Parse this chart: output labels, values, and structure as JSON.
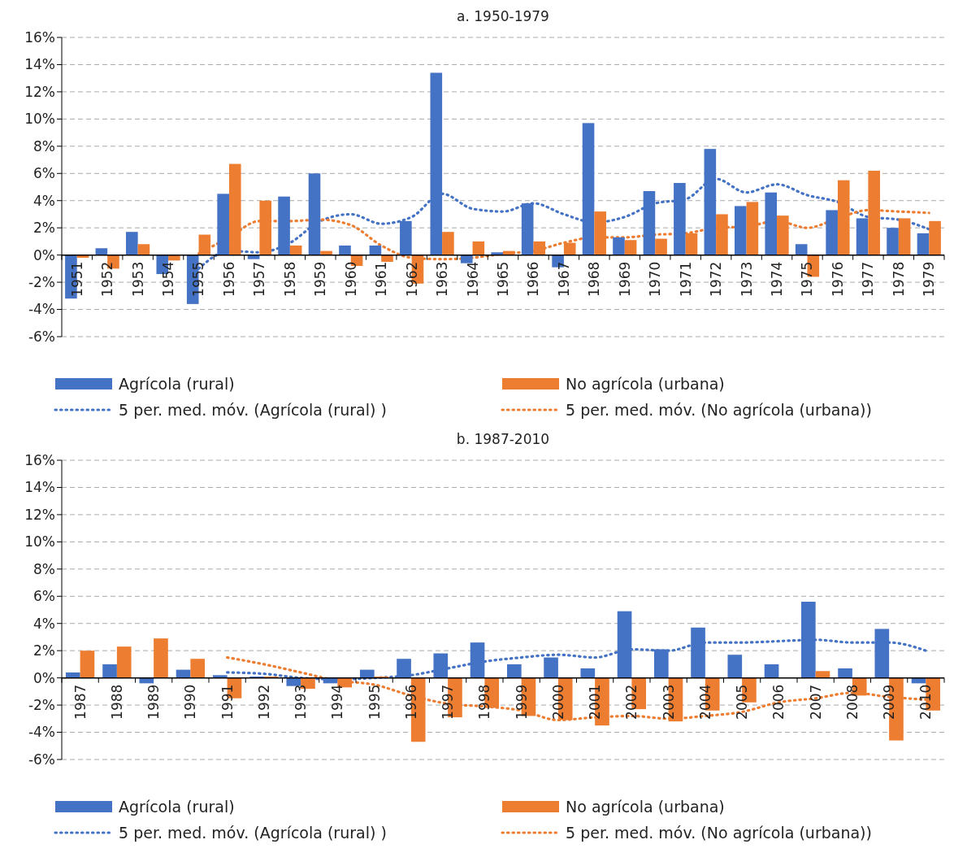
{
  "chart_data": [
    {
      "type": "bar",
      "title": "a. 1950-1979",
      "categories": [
        "1951",
        "1952",
        "1953",
        "1954",
        "1955",
        "1956",
        "1957",
        "1958",
        "1959",
        "1960",
        "1961",
        "1962",
        "1963",
        "1964",
        "1965",
        "1966",
        "1967",
        "1968",
        "1969",
        "1970",
        "1971",
        "1972",
        "1973",
        "1974",
        "1975",
        "1976",
        "1977",
        "1978",
        "1979"
      ],
      "series": [
        {
          "name": "Agrícola (rural)",
          "color": "#4472c4",
          "values": [
            -3.2,
            0.5,
            1.7,
            -1.4,
            -3.6,
            4.5,
            -0.3,
            4.3,
            6.0,
            0.7,
            0.7,
            2.5,
            13.4,
            -0.6,
            0.2,
            3.8,
            -0.9,
            9.7,
            1.3,
            4.7,
            5.3,
            7.8,
            3.6,
            4.6,
            0.8,
            3.3,
            2.7,
            2.0,
            1.6
          ]
        },
        {
          "name": "No agrícola (urbana)",
          "color": "#ed7d31",
          "values": [
            -0.2,
            -1.0,
            0.8,
            -0.4,
            1.5,
            6.7,
            4.0,
            0.7,
            0.3,
            -0.8,
            -0.5,
            -2.1,
            1.7,
            1.0,
            0.3,
            1.0,
            0.9,
            3.2,
            1.1,
            1.2,
            1.6,
            3.0,
            3.9,
            2.9,
            -1.6,
            5.5,
            6.2,
            2.7,
            2.5
          ]
        },
        {
          "name": "5 per. med. móv. (Agrícola (rural) )",
          "type": "line",
          "line_style": "dotted",
          "color": "#4472c4",
          "values": [
            null,
            null,
            null,
            null,
            -1.0,
            0.3,
            0.2,
            0.9,
            2.5,
            3.0,
            2.3,
            2.8,
            4.5,
            3.4,
            3.2,
            3.8,
            3.0,
            2.4,
            2.8,
            3.8,
            4.1,
            5.6,
            4.6,
            5.2,
            4.4,
            3.9,
            2.8,
            2.6,
            1.9
          ]
        },
        {
          "name": "5 per. med. móv. (No agrícola (urbana))",
          "type": "line",
          "line_style": "dotted",
          "color": "#ed7d31",
          "values": [
            null,
            null,
            null,
            null,
            0.1,
            1.3,
            2.5,
            2.5,
            2.6,
            2.2,
            0.7,
            -0.2,
            -0.3,
            -0.2,
            0.1,
            0.3,
            0.9,
            1.3,
            1.3,
            1.5,
            1.6,
            2.0,
            2.1,
            2.5,
            2.0,
            2.7,
            3.3,
            3.2,
            3.1
          ]
        }
      ],
      "ylim": [
        -6,
        16
      ],
      "yticks": [
        {
          "value": -6,
          "label": "-6%"
        },
        {
          "value": -4,
          "label": "-4%"
        },
        {
          "value": -2,
          "label": "-2%"
        },
        {
          "value": 0,
          "label": "0%"
        },
        {
          "value": 2,
          "label": "2%"
        },
        {
          "value": 4,
          "label": "4%"
        },
        {
          "value": 6,
          "label": "6%"
        },
        {
          "value": 8,
          "label": "8%"
        },
        {
          "value": 10,
          "label": "10%"
        },
        {
          "value": 12,
          "label": "12%"
        },
        {
          "value": 14,
          "label": "14%"
        },
        {
          "value": 16,
          "label": "16%"
        }
      ],
      "grid": "y",
      "legend": "bottom"
    },
    {
      "type": "bar",
      "title": "b. 1987-2010",
      "categories": [
        "1987",
        "1988",
        "1989",
        "1990",
        "1991",
        "1992",
        "1993",
        "1994",
        "1995",
        "1996",
        "1997",
        "1998",
        "1999",
        "2000",
        "2001",
        "2002",
        "2003",
        "2004",
        "2005",
        "2006",
        "2007",
        "2008",
        "2009",
        "2010"
      ],
      "series": [
        {
          "name": "Agrícola (rural)",
          "color": "#4472c4",
          "values": [
            0.4,
            1.0,
            -0.4,
            0.6,
            0.2,
            0.1,
            -0.6,
            -0.4,
            0.6,
            1.4,
            1.8,
            2.6,
            1.0,
            1.5,
            0.7,
            4.9,
            2.1,
            3.7,
            1.7,
            1.0,
            5.6,
            0.7,
            3.6,
            -0.4
          ]
        },
        {
          "name": "No agrícola (urbana)",
          "color": "#ed7d31",
          "values": [
            2.0,
            2.3,
            2.9,
            1.4,
            -1.5,
            0.1,
            -0.8,
            -0.7,
            0.1,
            -4.7,
            -2.9,
            -2.2,
            -2.8,
            -3.1,
            -3.5,
            -2.3,
            -3.2,
            -2.4,
            -1.8,
            0,
            0.5,
            -1.3,
            -4.6,
            -2.4
          ]
        },
        {
          "name": "5 per. med. móv. (Agrícola (rural) )",
          "type": "line",
          "line_style": "dotted",
          "color": "#4472c4",
          "values": [
            null,
            null,
            null,
            null,
            0.4,
            0.3,
            0.0,
            -0.1,
            0.0,
            0.2,
            0.7,
            1.2,
            1.5,
            1.7,
            1.5,
            2.1,
            2.0,
            2.6,
            2.6,
            2.7,
            2.8,
            2.6,
            2.6,
            2.0
          ]
        },
        {
          "name": "5 per. med. móv. (No agrícola (urbana))",
          "type": "line",
          "line_style": "dotted",
          "color": "#ed7d31",
          "values": [
            null,
            null,
            null,
            null,
            1.5,
            1.0,
            0.4,
            -0.2,
            -0.5,
            -1.3,
            -1.9,
            -2.1,
            -2.4,
            -3.1,
            -2.9,
            -2.8,
            -3.0,
            -2.8,
            -2.5,
            -1.8,
            -1.5,
            -1.1,
            -1.4,
            -1.6
          ]
        }
      ],
      "ylim": [
        -6,
        16
      ],
      "yticks": [
        {
          "value": -6,
          "label": "-6%"
        },
        {
          "value": -4,
          "label": "-4%"
        },
        {
          "value": -2,
          "label": "-2%"
        },
        {
          "value": 0,
          "label": "0%"
        },
        {
          "value": 2,
          "label": "2%"
        },
        {
          "value": 4,
          "label": "4%"
        },
        {
          "value": 6,
          "label": "6%"
        },
        {
          "value": 8,
          "label": "8%"
        },
        {
          "value": 10,
          "label": "10%"
        },
        {
          "value": 12,
          "label": "12%"
        },
        {
          "value": 14,
          "label": "14%"
        },
        {
          "value": 16,
          "label": "16%"
        }
      ],
      "grid": "y",
      "legend": "bottom"
    }
  ]
}
